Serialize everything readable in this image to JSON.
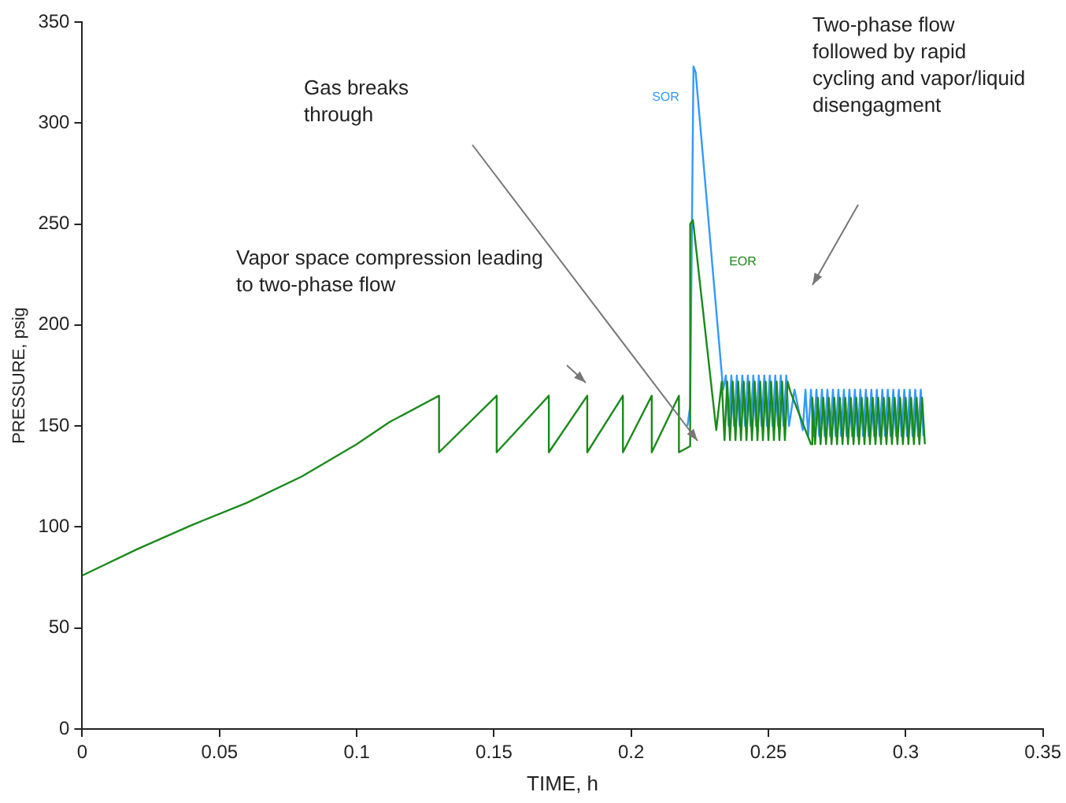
{
  "chart_data": {
    "type": "line",
    "xlabel": "TIME, h",
    "ylabel": "PRESSURE, psig",
    "xlim": [
      0,
      0.35
    ],
    "xticks": [
      0,
      0.05,
      0.1,
      0.15,
      0.2,
      0.25,
      0.3,
      0.35
    ],
    "ylim": [
      0,
      350
    ],
    "yticks": [
      0,
      50,
      100,
      150,
      200,
      250,
      300,
      350
    ],
    "grid": false,
    "legend": false,
    "marker": "none",
    "line_style": "solid",
    "annotations": [
      "Gas breaks through",
      "Vapor space compression leading to two-phase flow",
      "Two-phase flow followed by rapid cycling and vapor/liquid disengagment"
    ],
    "series": [
      {
        "name": "EOR",
        "color": "#1a8a1a",
        "x": [
          0,
          0.02,
          0.04,
          0.06,
          0.08,
          0.1,
          0.112,
          0.13,
          0.13,
          0.151,
          0.151,
          0.17,
          0.17,
          0.184,
          0.184,
          0.197,
          0.197,
          0.2075,
          0.2075,
          0.2174,
          0.2174,
          0.2215,
          0.2215,
          0.2225,
          0.231,
          0.233,
          0.234,
          0.235,
          0.236,
          0.237,
          0.238,
          0.239,
          0.24,
          0.241,
          0.242,
          0.243,
          0.244,
          0.245,
          0.246,
          0.247,
          0.248,
          0.249,
          0.25,
          0.251,
          0.252,
          0.253,
          0.254,
          0.255,
          0.256,
          0.257,
          0.258,
          0.2655,
          0.266,
          0.267,
          0.268,
          0.269,
          0.27,
          0.271,
          0.272,
          0.273,
          0.274,
          0.275,
          0.276,
          0.277,
          0.278,
          0.279,
          0.28,
          0.281,
          0.282,
          0.283,
          0.284,
          0.285,
          0.286,
          0.287,
          0.288,
          0.289,
          0.29,
          0.291,
          0.292,
          0.293,
          0.294,
          0.295,
          0.296,
          0.297,
          0.298,
          0.299,
          0.3,
          0.301,
          0.302,
          0.303,
          0.304,
          0.305,
          0.306,
          0.307
        ],
        "values": [
          76,
          89,
          101,
          112,
          125,
          141,
          152,
          165,
          137,
          165,
          137,
          165,
          137,
          165,
          137,
          165,
          137,
          165,
          137,
          165,
          137,
          140,
          250,
          252,
          148,
          172,
          143,
          172,
          143,
          172,
          143,
          172,
          143,
          172,
          143,
          172,
          143,
          172,
          143,
          172,
          143,
          172,
          143,
          172,
          143,
          172,
          143,
          172,
          143,
          172,
          167,
          141,
          164,
          141,
          164,
          141,
          164,
          141,
          164,
          141,
          164,
          141,
          164,
          141,
          164,
          141,
          164,
          141,
          164,
          141,
          164,
          141,
          164,
          141,
          164,
          141,
          164,
          141,
          164,
          141,
          164,
          141,
          164,
          141,
          164,
          141,
          164,
          141,
          164,
          141,
          164,
          141,
          164,
          141
        ]
      },
      {
        "name": "SOR",
        "color": "#3399ff",
        "x": [
          0.2205,
          0.2215,
          0.2227,
          0.2235,
          0.2335,
          0.2345,
          0.2355,
          0.2365,
          0.2375,
          0.2385,
          0.2395,
          0.2405,
          0.2415,
          0.2425,
          0.2435,
          0.2445,
          0.2455,
          0.2465,
          0.2475,
          0.2485,
          0.2495,
          0.2505,
          0.2515,
          0.2525,
          0.2535,
          0.2545,
          0.2555,
          0.2565,
          0.2575,
          0.2595,
          0.2625,
          0.2635,
          0.2645,
          0.2655,
          0.2665,
          0.2675,
          0.2685,
          0.2695,
          0.2705,
          0.2715,
          0.2725,
          0.2735,
          0.2745,
          0.2755,
          0.2765,
          0.2775,
          0.2785,
          0.2795,
          0.2805,
          0.2815,
          0.2825,
          0.2835,
          0.2845,
          0.2855,
          0.2865,
          0.2875,
          0.2885,
          0.2895,
          0.2905,
          0.2915,
          0.2925,
          0.2935,
          0.2945,
          0.2955,
          0.2965,
          0.2975,
          0.2985,
          0.2995,
          0.3005,
          0.3015,
          0.3025,
          0.3035,
          0.3045,
          0.3055,
          0.3065
        ],
        "values": [
          150,
          160,
          328,
          325,
          168,
          175,
          150,
          175,
          150,
          175,
          150,
          175,
          150,
          175,
          150,
          175,
          150,
          175,
          150,
          175,
          150,
          175,
          150,
          175,
          150,
          175,
          150,
          175,
          150,
          168,
          148,
          168,
          145,
          168,
          145,
          168,
          145,
          168,
          145,
          168,
          145,
          168,
          145,
          168,
          145,
          168,
          145,
          168,
          145,
          168,
          145,
          168,
          145,
          168,
          145,
          168,
          145,
          168,
          145,
          168,
          145,
          168,
          145,
          168,
          145,
          168,
          145,
          168,
          145,
          168,
          145,
          168,
          145,
          168,
          145
        ]
      }
    ]
  }
}
